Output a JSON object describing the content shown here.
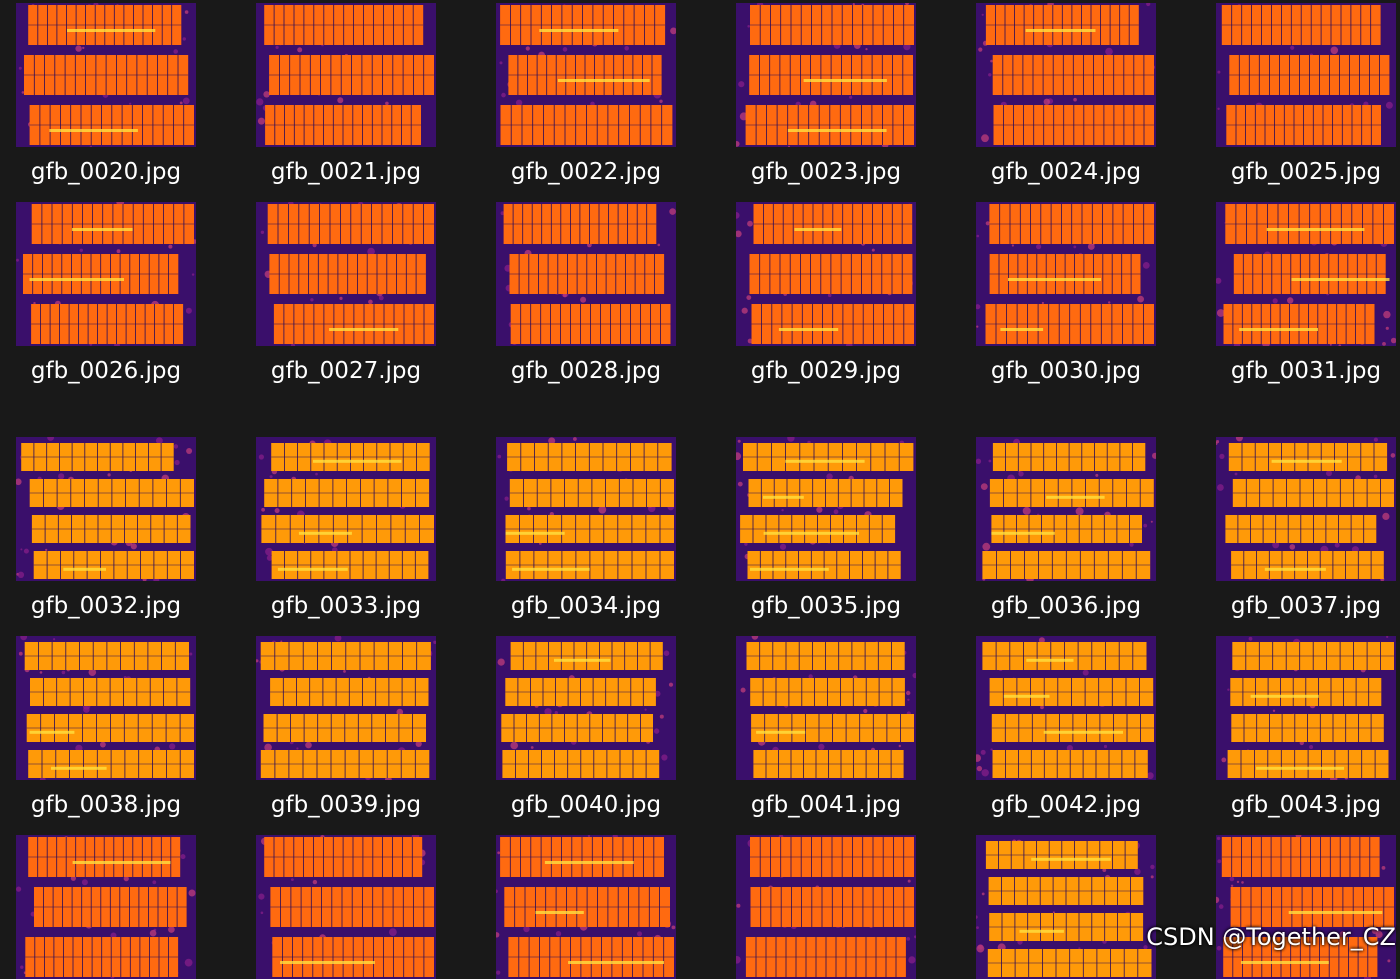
{
  "files": [
    {
      "name": "gfb_0020.jpg",
      "style": "warm"
    },
    {
      "name": "gfb_0021.jpg",
      "style": "warm"
    },
    {
      "name": "gfb_0022.jpg",
      "style": "warm"
    },
    {
      "name": "gfb_0023.jpg",
      "style": "warm"
    },
    {
      "name": "gfb_0024.jpg",
      "style": "warm"
    },
    {
      "name": "gfb_0025.jpg",
      "style": "warm"
    },
    {
      "name": "gfb_0026.jpg",
      "style": "warm"
    },
    {
      "name": "gfb_0027.jpg",
      "style": "warm"
    },
    {
      "name": "gfb_0028.jpg",
      "style": "warm"
    },
    {
      "name": "gfb_0029.jpg",
      "style": "warm"
    },
    {
      "name": "gfb_0030.jpg",
      "style": "warm"
    },
    {
      "name": "gfb_0031.jpg",
      "style": "warm"
    },
    {
      "name": "gfb_0032.jpg",
      "style": "hot"
    },
    {
      "name": "gfb_0033.jpg",
      "style": "hot"
    },
    {
      "name": "gfb_0034.jpg",
      "style": "hot"
    },
    {
      "name": "gfb_0035.jpg",
      "style": "hot"
    },
    {
      "name": "gfb_0036.jpg",
      "style": "hot"
    },
    {
      "name": "gfb_0037.jpg",
      "style": "hot"
    },
    {
      "name": "gfb_0038.jpg",
      "style": "hot"
    },
    {
      "name": "gfb_0039.jpg",
      "style": "hot"
    },
    {
      "name": "gfb_0040.jpg",
      "style": "hot"
    },
    {
      "name": "gfb_0041.jpg",
      "style": "hot"
    },
    {
      "name": "gfb_0042.jpg",
      "style": "hot"
    },
    {
      "name": "gfb_0043.jpg",
      "style": "hot"
    },
    {
      "name": "",
      "style": "warm"
    },
    {
      "name": "",
      "style": "warm"
    },
    {
      "name": "",
      "style": "warm"
    },
    {
      "name": "",
      "style": "warm"
    },
    {
      "name": "",
      "style": "hot"
    },
    {
      "name": "",
      "style": "warm"
    }
  ],
  "colors": {
    "background": "#191919",
    "ground": "#3a0f6b",
    "panel_warm": "#ff6a10",
    "panel_hot": "#ff9a08",
    "cell_line": "#2a0a5a",
    "highlight": "#ffe040",
    "text": "#ffffff"
  },
  "watermark": "CSDN @Together_CZ"
}
